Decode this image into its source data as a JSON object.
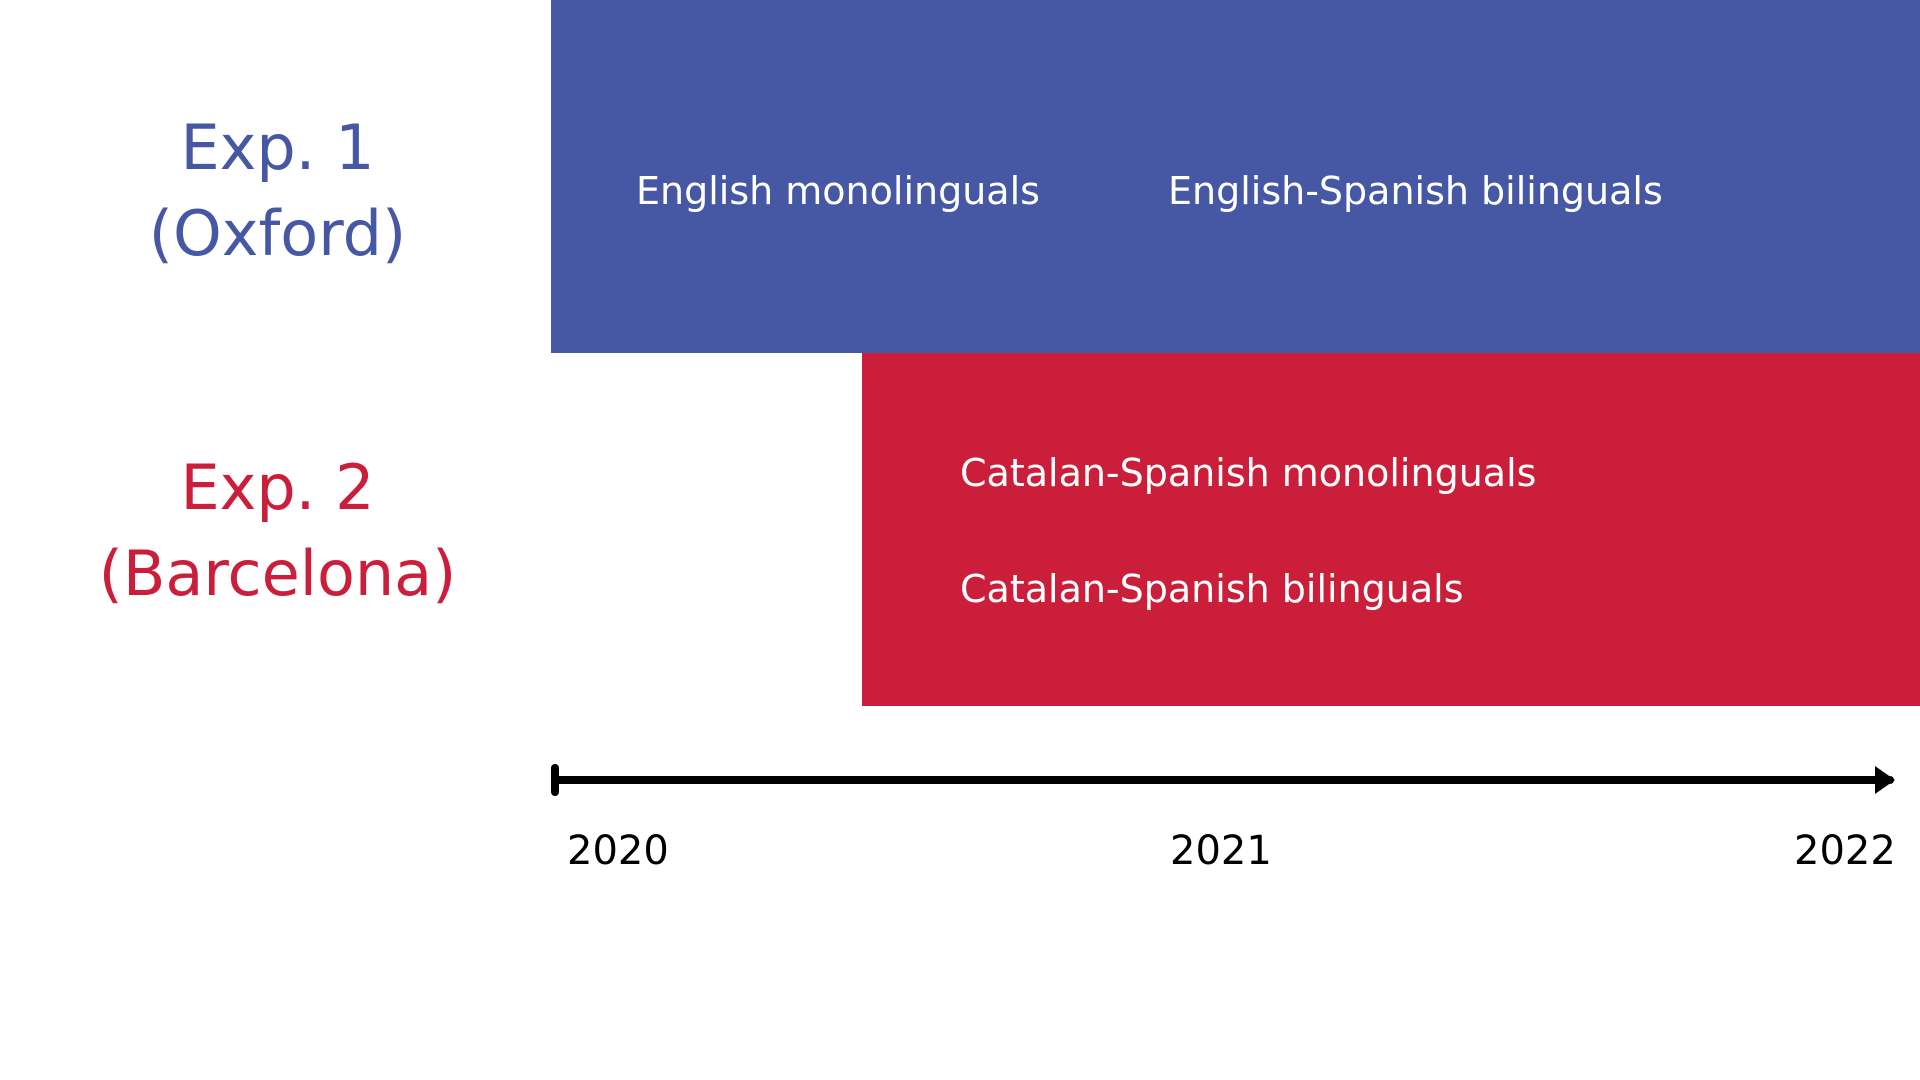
{
  "colors": {
    "exp1": "#4658A3",
    "exp2": "#CB1E3B",
    "axis": "#000000",
    "group_text": "#FFFFFF"
  },
  "experiments": [
    {
      "title": "Exp. 1",
      "location": "(Oxford)",
      "start_year": 2020,
      "end_year": 2022,
      "groups": [
        "English monolinguals",
        "English-Spanish bilinguals"
      ]
    },
    {
      "title": "Exp. 2",
      "location": "(Barcelona)",
      "start_year": 2020.5,
      "end_year": 2022,
      "groups": [
        "Catalan-Spanish monolinguals",
        "Catalan-Spanish bilinguals"
      ]
    }
  ],
  "timeline": {
    "ticks": [
      "2020",
      "2021",
      "2022"
    ]
  }
}
